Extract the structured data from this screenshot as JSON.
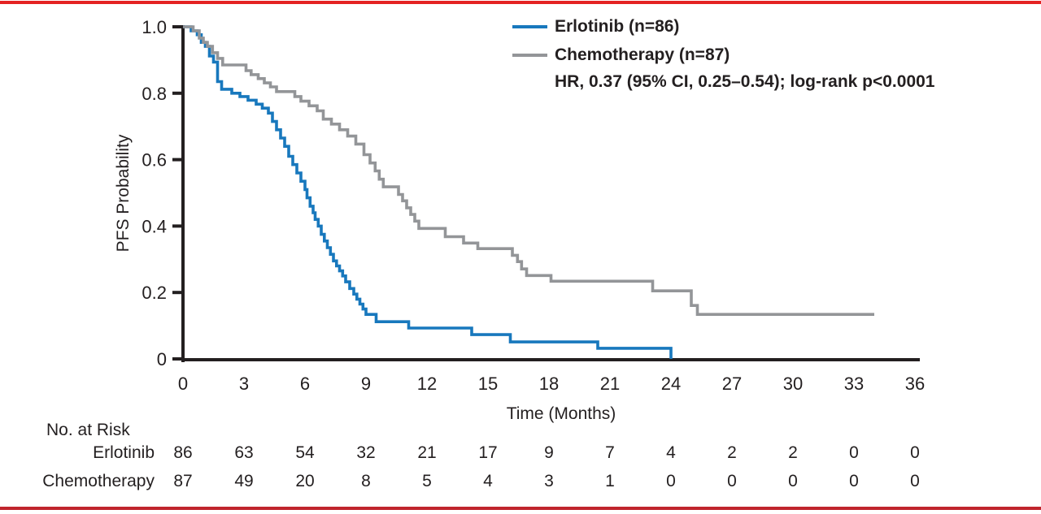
{
  "figure": {
    "background": "#ffffff",
    "top_border_color": "#e42322",
    "bottom_border_color": "#c0252c",
    "axis_color": "#231f20",
    "text_color": "#231f20"
  },
  "chart_data": {
    "type": "line",
    "subtype": "kaplan-meier-step",
    "title": "",
    "xlabel": "Time (Months)",
    "ylabel": "PFS Probability",
    "xlim": [
      0,
      36
    ],
    "ylim": [
      0,
      1.0
    ],
    "grid": false,
    "legend_position": "top-right",
    "xticks": [
      0,
      3,
      6,
      9,
      12,
      15,
      18,
      21,
      24,
      27,
      30,
      33,
      36
    ],
    "yticks": [
      {
        "value": 1.0,
        "label": "1.0"
      },
      {
        "value": 0.8,
        "label": "0.8"
      },
      {
        "value": 0.6,
        "label": "0.6"
      },
      {
        "value": 0.4,
        "label": "0.4"
      },
      {
        "value": 0.2,
        "label": "0.2"
      },
      {
        "value": 0.0,
        "label": "0"
      }
    ],
    "annotation": "HR, 0.37 (95% CI, 0.25–0.54); log-rank p<0.0001",
    "series": [
      {
        "name": "Erlotinib (n=86)",
        "color": "#1878bd",
        "steps": [
          [
            0,
            1.0
          ],
          [
            0.4,
            0.988
          ],
          [
            0.7,
            0.976
          ],
          [
            0.9,
            0.953
          ],
          [
            1.1,
            0.941
          ],
          [
            1.3,
            0.912
          ],
          [
            1.5,
            0.894
          ],
          [
            1.7,
            0.835
          ],
          [
            1.9,
            0.812
          ],
          [
            2.4,
            0.8
          ],
          [
            2.8,
            0.79
          ],
          [
            3.2,
            0.779
          ],
          [
            3.6,
            0.767
          ],
          [
            3.9,
            0.755
          ],
          [
            4.2,
            0.74
          ],
          [
            4.4,
            0.715
          ],
          [
            4.6,
            0.69
          ],
          [
            4.8,
            0.665
          ],
          [
            5.0,
            0.64
          ],
          [
            5.2,
            0.61
          ],
          [
            5.4,
            0.585
          ],
          [
            5.6,
            0.56
          ],
          [
            5.8,
            0.535
          ],
          [
            6.0,
            0.51
          ],
          [
            6.1,
            0.485
          ],
          [
            6.25,
            0.46
          ],
          [
            6.4,
            0.44
          ],
          [
            6.5,
            0.42
          ],
          [
            6.65,
            0.4
          ],
          [
            6.8,
            0.375
          ],
          [
            6.95,
            0.355
          ],
          [
            7.1,
            0.335
          ],
          [
            7.25,
            0.315
          ],
          [
            7.4,
            0.295
          ],
          [
            7.55,
            0.28
          ],
          [
            7.7,
            0.265
          ],
          [
            7.85,
            0.25
          ],
          [
            8.0,
            0.232
          ],
          [
            8.2,
            0.212
          ],
          [
            8.4,
            0.195
          ],
          [
            8.55,
            0.18
          ],
          [
            8.7,
            0.165
          ],
          [
            8.85,
            0.15
          ],
          [
            9.0,
            0.134
          ],
          [
            9.5,
            0.112
          ],
          [
            11.1,
            0.093
          ],
          [
            14.2,
            0.073
          ],
          [
            16.1,
            0.051
          ],
          [
            20.4,
            0.032
          ],
          [
            24.0,
            0.0
          ]
        ]
      },
      {
        "name": "Chemotherapy (n=87)",
        "color": "#939598",
        "steps": [
          [
            0,
            1.0
          ],
          [
            0.5,
            0.988
          ],
          [
            0.8,
            0.966
          ],
          [
            1.0,
            0.953
          ],
          [
            1.2,
            0.941
          ],
          [
            1.45,
            0.922
          ],
          [
            1.7,
            0.905
          ],
          [
            1.95,
            0.885
          ],
          [
            3.1,
            0.868
          ],
          [
            3.35,
            0.856
          ],
          [
            3.7,
            0.844
          ],
          [
            4.0,
            0.831
          ],
          [
            4.3,
            0.819
          ],
          [
            4.6,
            0.805
          ],
          [
            5.5,
            0.79
          ],
          [
            5.8,
            0.776
          ],
          [
            6.2,
            0.762
          ],
          [
            6.6,
            0.747
          ],
          [
            6.9,
            0.722
          ],
          [
            7.3,
            0.707
          ],
          [
            7.7,
            0.69
          ],
          [
            8.1,
            0.671
          ],
          [
            8.5,
            0.647
          ],
          [
            8.9,
            0.615
          ],
          [
            9.2,
            0.59
          ],
          [
            9.45,
            0.566
          ],
          [
            9.65,
            0.541
          ],
          [
            9.85,
            0.518
          ],
          [
            10.6,
            0.495
          ],
          [
            10.8,
            0.476
          ],
          [
            11.0,
            0.455
          ],
          [
            11.2,
            0.435
          ],
          [
            11.4,
            0.415
          ],
          [
            11.6,
            0.393
          ],
          [
            12.9,
            0.368
          ],
          [
            13.8,
            0.349
          ],
          [
            14.5,
            0.332
          ],
          [
            16.2,
            0.312
          ],
          [
            16.45,
            0.293
          ],
          [
            16.65,
            0.271
          ],
          [
            16.9,
            0.251
          ],
          [
            18.1,
            0.234
          ],
          [
            23.1,
            0.205
          ],
          [
            25.0,
            0.161
          ],
          [
            25.3,
            0.134
          ],
          [
            34.0,
            0.134
          ]
        ]
      }
    ],
    "risk_table": {
      "title": "No. at Risk",
      "times": [
        0,
        3,
        6,
        9,
        12,
        15,
        18,
        21,
        24,
        27,
        30,
        33,
        36
      ],
      "rows": [
        {
          "label": "Erlotinib",
          "values": [
            86,
            63,
            54,
            32,
            21,
            17,
            9,
            7,
            4,
            2,
            2,
            0,
            0
          ]
        },
        {
          "label": "Chemotherapy",
          "values": [
            87,
            49,
            20,
            8,
            5,
            4,
            3,
            1,
            0,
            0,
            0,
            0,
            0
          ]
        }
      ]
    }
  }
}
